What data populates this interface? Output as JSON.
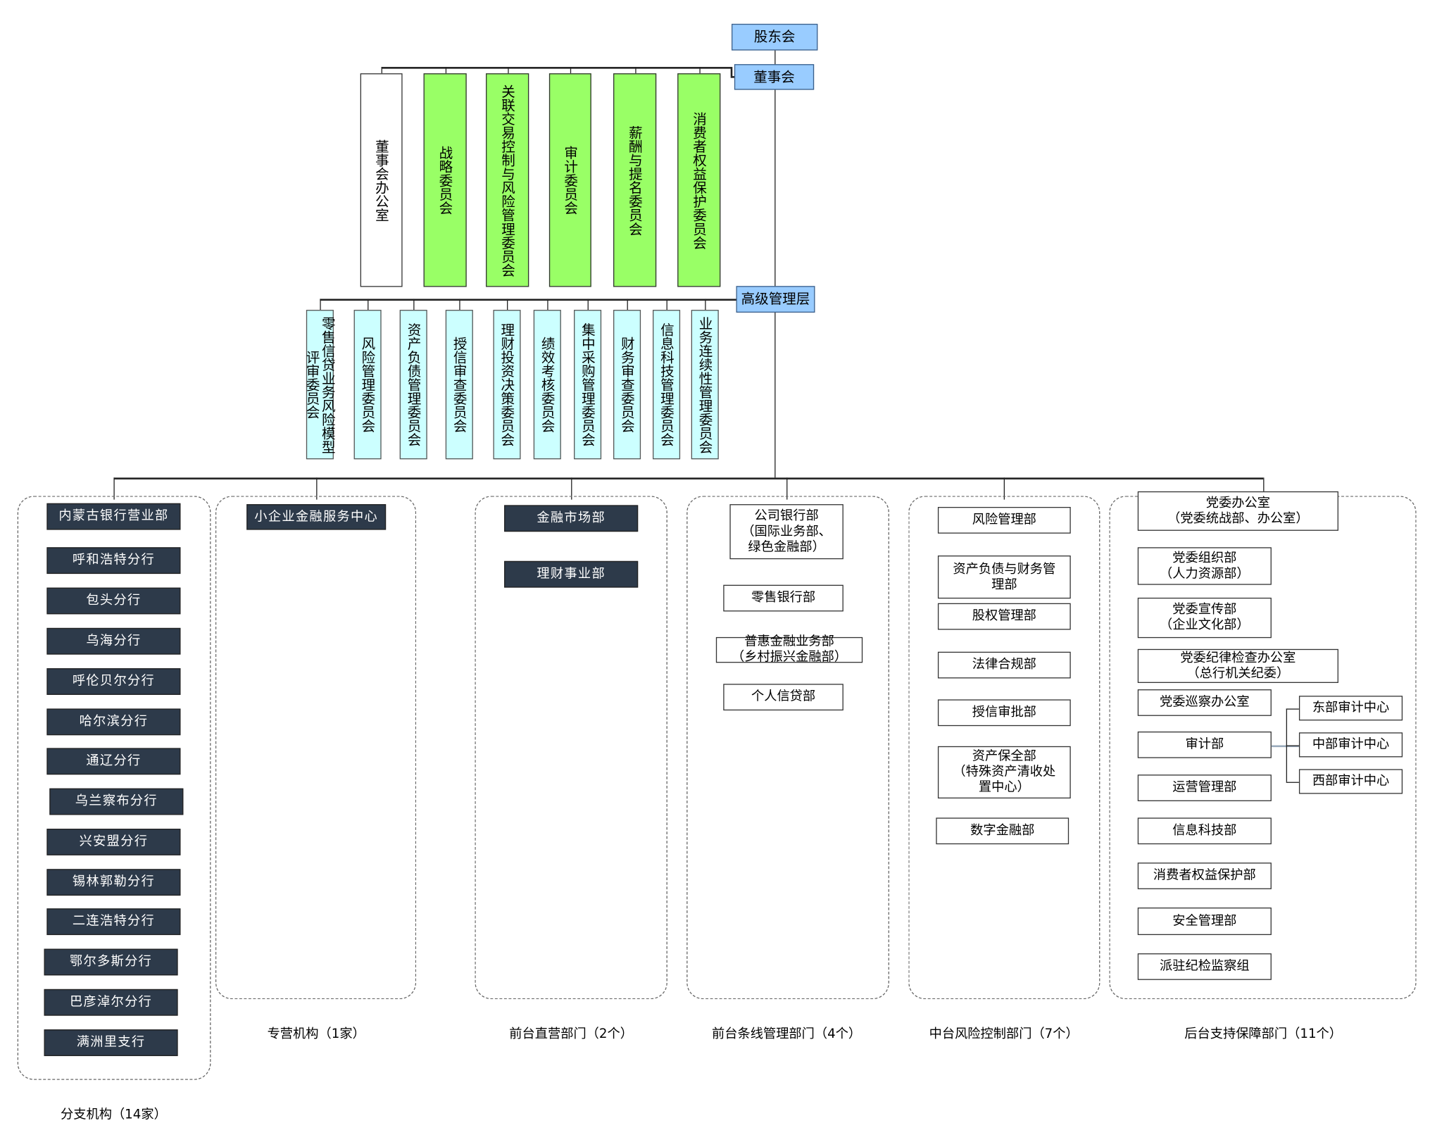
{
  "top": {
    "shareholders": "股东会",
    "board": "董事会",
    "senior": "高级管理层"
  },
  "board_children": [
    {
      "label": "董事会办公室",
      "style": "white"
    },
    {
      "label": "战略委员会",
      "style": "green"
    },
    {
      "label": "关联交易控制与风险管理委员会",
      "style": "green"
    },
    {
      "label": "审计委员会",
      "style": "green"
    },
    {
      "label": "薪酬与提名委员会",
      "style": "green"
    },
    {
      "label": "消费者权益保护委员会",
      "style": "green"
    }
  ],
  "senior_children": [
    "零售信贷业务风险模型评审委员会",
    "风险管理委员会",
    "资产负债管理委员会",
    "授信审查委员会",
    "理财投资决策委员会",
    "绩效考核委员会",
    "集中采购管理委员会",
    "财务审查委员会",
    "信息科技管理委员会",
    "业务连续性管理委员会"
  ],
  "groups": {
    "branches": {
      "label": "分支机构（14家）",
      "items": [
        "内蒙古银行营业部",
        "呼和浩特分行",
        "包头分行",
        "乌海分行",
        "呼伦贝尔分行",
        "哈尔滨分行",
        "通辽分行",
        "乌兰察布分行",
        "兴安盟分行",
        "锡林郭勒分行",
        "二连浩特分行",
        "鄂尔多斯分行",
        "巴彦淖尔分行",
        "满洲里支行"
      ]
    },
    "specialized": {
      "label": "专营机构（1家）",
      "items": [
        "小企业金融服务中心"
      ]
    },
    "front_direct": {
      "label": "前台直营部门（2个）",
      "items": [
        "金融市场部",
        "理财事业部"
      ]
    },
    "front_line": {
      "label": "前台条线管理部门（4个）",
      "items": [
        "公司银行部\n（国际业务部、\n绿色金融部）",
        "零售银行部",
        "普惠金融业务部\n（乡村振兴金融部）",
        "个人信贷部"
      ]
    },
    "middle": {
      "label": "中台风险控制部门（7个）",
      "items": [
        "风险管理部",
        "资产负债与财务管\n理部",
        "股权管理部",
        "法律合规部",
        "授信审批部",
        "资产保全部\n（特殊资产清收处\n置中心）",
        "数字金融部"
      ]
    },
    "back": {
      "label": "后台支持保障部门（11个）",
      "items": [
        "党委办公室\n（党委统战部、办公室）",
        "党委组织部\n（人力资源部）",
        "党委宣传部\n（企业文化部）",
        "党委纪律检查办公室\n（总行机关纪委）",
        "党委巡察办公室",
        "审计部",
        "运营管理部",
        "信息科技部",
        "消费者权益保护部",
        "安全管理部",
        "派驻纪检监察组"
      ],
      "audit_centers": [
        "东部审计中心",
        "中部审计中心",
        "西部审计中心"
      ]
    }
  },
  "colors": {
    "top": "#99ccff",
    "board_committee": "#99ff66",
    "senior_committee": "#ccffff",
    "dark_box": "#2d3a4a"
  }
}
